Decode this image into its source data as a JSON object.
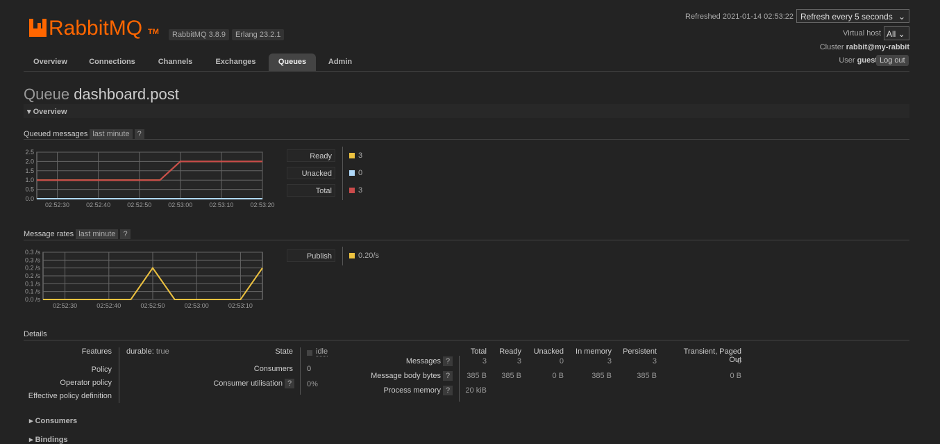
{
  "header": {
    "logo": "RabbitMQ",
    "trademark": "TM",
    "version": "RabbitMQ 3.8.9",
    "erlang": "Erlang 23.2.1",
    "refreshed": "Refreshed 2021-01-14 02:53:22",
    "refresh_option": "Refresh every 5 seconds",
    "vhost_label": "Virtual host",
    "vhost": "All",
    "cluster_label": "Cluster",
    "cluster": "rabbit@my-rabbit",
    "user_label": "User",
    "user": "guest",
    "logout": "Log out"
  },
  "nav": {
    "tabs": [
      "Overview",
      "Connections",
      "Channels",
      "Exchanges",
      "Queues",
      "Admin"
    ],
    "active_tab": 4
  },
  "page": {
    "title": "Queue",
    "name": "dashboard.post",
    "section": "Overview"
  },
  "queued_chart": {
    "type": "line",
    "title": "Queued messages",
    "range": "last minute",
    "help": "?",
    "x": [
      "02:52:25",
      "02:52:30",
      "02:52:35",
      "02:52:40",
      "02:52:45",
      "02:52:50",
      "02:52:55",
      "02:53:00",
      "02:53:05",
      "02:53:10",
      "02:53:15",
      "02:53:20"
    ],
    "xlim": [
      "02:52:25",
      "02:53:20"
    ],
    "xticks": [
      "02:52:30",
      "02:52:40",
      "02:52:50",
      "02:53:00",
      "02:53:10",
      "02:53:20"
    ],
    "ylim": [
      0,
      2.5
    ],
    "yticks": [
      {
        "value": 0,
        "label": "0.0"
      },
      0.5,
      {
        "value": 1,
        "label": "1.0"
      },
      1.5,
      {
        "value": 2,
        "label": "2.0"
      },
      2.5
    ],
    "series": [
      {
        "name": "Ready",
        "color": "#edc240",
        "values": [
          1,
          1,
          1,
          1,
          1,
          1,
          1,
          2,
          2,
          2,
          2,
          2
        ],
        "current": 3
      },
      {
        "name": "Unacked",
        "color": "#afd8f8",
        "values": [
          0,
          0,
          0,
          0,
          0,
          0,
          0,
          0,
          0,
          0,
          0,
          0
        ],
        "current": 0
      },
      {
        "name": "Total",
        "color": "#cb4b4b",
        "values": [
          1,
          1,
          1,
          1,
          1,
          1,
          1,
          2,
          2,
          2,
          2,
          2
        ],
        "current": 3
      }
    ]
  },
  "rates_chart": {
    "type": "line",
    "title": "Message rates",
    "range": "last minute",
    "help": "?",
    "x": [
      "02:52:25",
      "02:52:30",
      "02:52:35",
      "02:52:40",
      "02:52:45",
      "02:52:50",
      "02:52:55",
      "02:53:00",
      "02:53:05",
      "02:53:10",
      "02:53:15"
    ],
    "xlim": [
      "02:52:25",
      "02:53:15"
    ],
    "xticks": [
      "02:52:30",
      "02:52:40",
      "02:52:50",
      "02:53:00",
      "02:53:10"
    ],
    "ylim": [
      0,
      0.3
    ],
    "yticks": [
      {
        "value": 0,
        "label": "0.0 /s"
      },
      {
        "value": 0.05,
        "label": "0.1 /s"
      },
      {
        "value": 0.1,
        "label": "0.1 /s"
      },
      {
        "value": 0.15,
        "label": "0.2 /s"
      },
      {
        "value": 0.2,
        "label": "0.2 /s"
      },
      {
        "value": 0.25,
        "label": "0.3 /s"
      },
      {
        "value": 0.3,
        "label": "0.3 /s"
      }
    ],
    "series": [
      {
        "name": "Publish",
        "color": "#edc240",
        "values": [
          0,
          0,
          0,
          0,
          0,
          0.2,
          0,
          0,
          0,
          0,
          0.2
        ],
        "current": 0.2,
        "current_label": "0.20/s"
      }
    ]
  },
  "details": {
    "title": "Details",
    "features_label": "Features",
    "features_key": "durable:",
    "features_value": "true",
    "policy_labels": [
      "Policy",
      "Operator policy",
      "Effective policy definition"
    ],
    "state_label": "State",
    "state": "idle",
    "consumers_label": "Consumers",
    "consumers": 0,
    "utilisation_label": "Consumer utilisation",
    "utilisation": "0%",
    "help": "?",
    "table": {
      "headers": [
        "Total",
        "Ready",
        "Unacked",
        "In memory",
        "Persistent",
        "Transient, Paged Out"
      ],
      "rows": [
        {
          "label": "Messages",
          "cells": [
            3,
            3,
            0,
            3,
            3,
            0
          ]
        },
        {
          "label": "Message body bytes",
          "cells": [
            "385 B",
            "385 B",
            "0 B",
            "385 B",
            "385 B",
            "0 B"
          ]
        },
        {
          "label": "Process memory",
          "cells": [
            "20 kiB"
          ]
        }
      ]
    }
  },
  "sections": [
    "Consumers",
    "Bindings"
  ]
}
